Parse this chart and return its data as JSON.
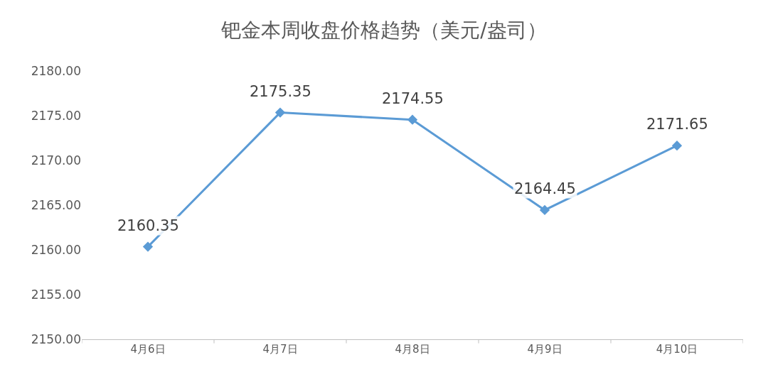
{
  "chart_data": {
    "type": "line",
    "title": "钯金本周收盘价格趋势（美元/盎司）",
    "categories": [
      "4月6日",
      "4月7日",
      "4月8日",
      "4月9日",
      "4月10日"
    ],
    "series": [
      {
        "color": "#5b9bd5",
        "values": [
          2160.35,
          2175.35,
          2174.55,
          2164.45,
          2171.65
        ]
      }
    ],
    "ylim": [
      2150,
      2180
    ],
    "yticks": [
      {
        "value": 2150,
        "label": "2150.00"
      },
      {
        "value": 2155,
        "label": "2155.00"
      },
      {
        "value": 2160,
        "label": "2160.00"
      },
      {
        "value": 2165,
        "label": "2165.00"
      },
      {
        "value": 2170,
        "label": "2170.00"
      },
      {
        "value": 2175,
        "label": "2175.00"
      },
      {
        "value": 2180,
        "label": "2180.00"
      }
    ],
    "data_labels": true,
    "marker": "diamond",
    "line_style": "solid"
  }
}
